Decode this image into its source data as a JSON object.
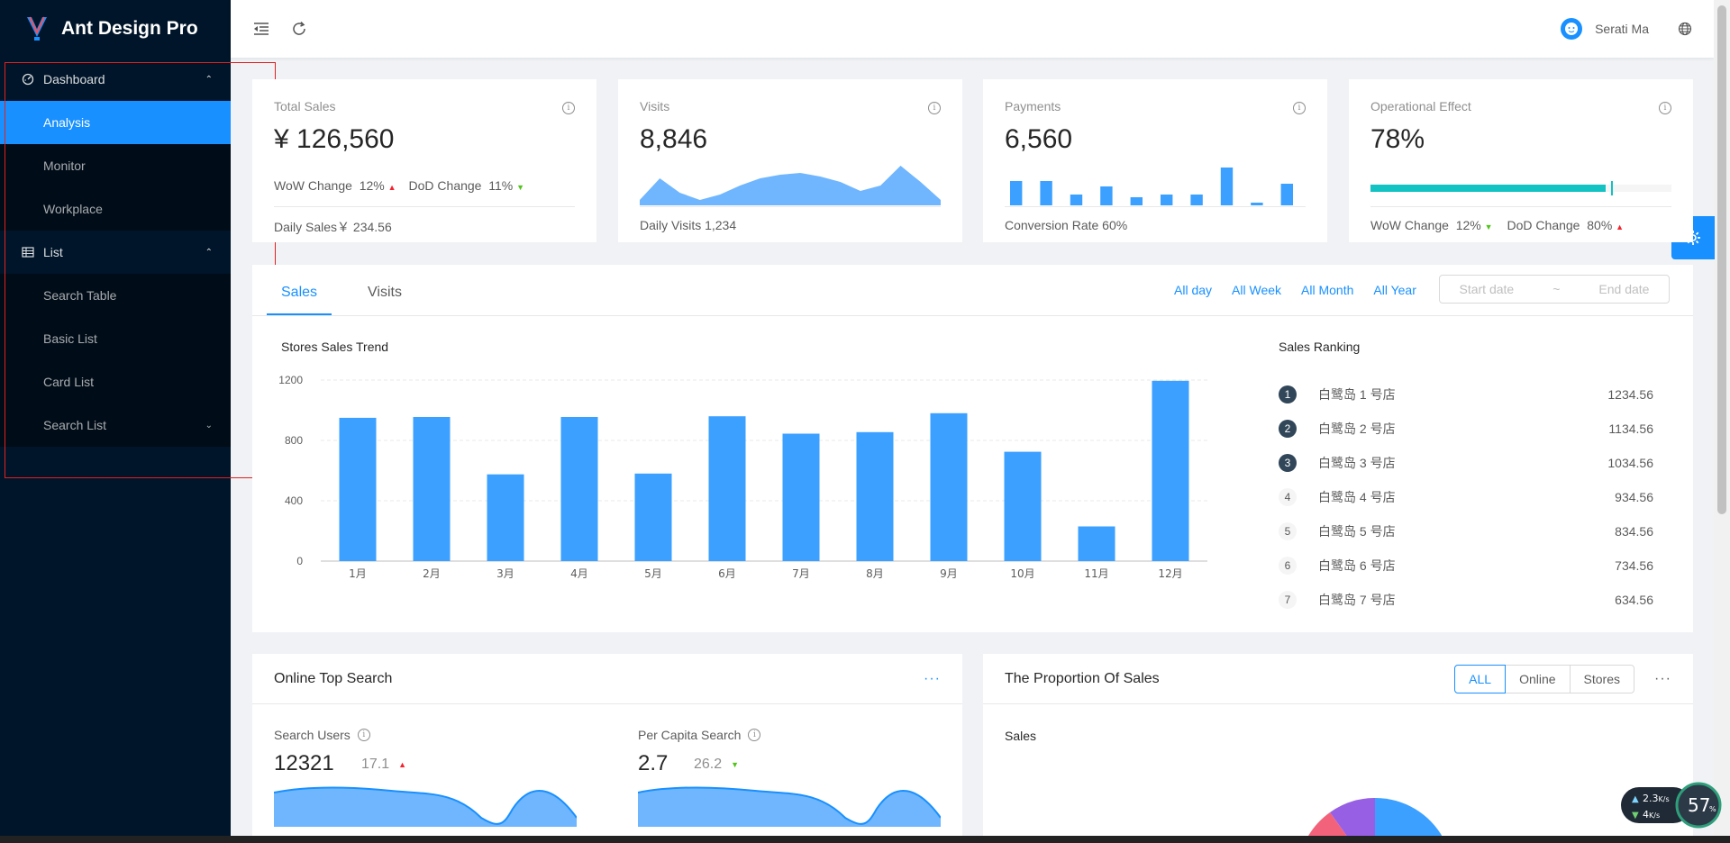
{
  "app": {
    "title": "Ant Design Pro"
  },
  "sidebar": {
    "groups": [
      {
        "label": "Dashboard",
        "icon": "dashboard-icon",
        "items": [
          {
            "label": "Analysis",
            "active": true
          },
          {
            "label": "Monitor"
          },
          {
            "label": "Workplace"
          }
        ]
      },
      {
        "label": "List",
        "icon": "table-icon",
        "items": [
          {
            "label": "Search Table"
          },
          {
            "label": "Basic List"
          },
          {
            "label": "Card List"
          },
          {
            "label": "Search List"
          }
        ]
      }
    ]
  },
  "header": {
    "user": "Serati Ma"
  },
  "stats": {
    "total_sales": {
      "title": "Total Sales",
      "value": "¥ 126,560",
      "wow_label": "WoW Change",
      "wow": "12%",
      "dod_label": "DoD Change",
      "dod": "11%",
      "footer": "Daily Sales￥ 234.56"
    },
    "visits": {
      "title": "Visits",
      "value": "8,846",
      "footer": "Daily Visits 1,234"
    },
    "payments": {
      "title": "Payments",
      "value": "6,560",
      "footer": "Conversion Rate 60%"
    },
    "operational": {
      "title": "Operational Effect",
      "value": "78%",
      "progress": 78,
      "wow_label": "WoW Change",
      "wow": "12%",
      "dod_label": "DoD Change",
      "dod": "80%"
    }
  },
  "sales_panel": {
    "tabs": [
      "Sales",
      "Visits"
    ],
    "ranges": [
      "All day",
      "All Week",
      "All Month",
      "All Year"
    ],
    "start_placeholder": "Start date",
    "range_sep": "~",
    "end_placeholder": "End date",
    "chart_title": "Stores Sales Trend",
    "ranking_title": "Sales Ranking",
    "ranking": [
      {
        "rank": "1",
        "name": "白鹭岛 1 号店",
        "value": "1234.56"
      },
      {
        "rank": "2",
        "name": "白鹭岛 2 号店",
        "value": "1134.56"
      },
      {
        "rank": "3",
        "name": "白鹭岛 3 号店",
        "value": "1034.56"
      },
      {
        "rank": "4",
        "name": "白鹭岛 4 号店",
        "value": "934.56"
      },
      {
        "rank": "5",
        "name": "白鹭岛 5 号店",
        "value": "834.56"
      },
      {
        "rank": "6",
        "name": "白鹭岛 6 号店",
        "value": "734.56"
      },
      {
        "rank": "7",
        "name": "白鹭岛 7 号店",
        "value": "634.56"
      }
    ]
  },
  "chart_data": {
    "type": "bar",
    "title": "Stores Sales Trend",
    "categories": [
      "1月",
      "2月",
      "3月",
      "4月",
      "5月",
      "6月",
      "7月",
      "8月",
      "9月",
      "10月",
      "11月",
      "12月"
    ],
    "values": [
      950,
      955,
      575,
      955,
      580,
      960,
      845,
      855,
      980,
      725,
      230,
      1195
    ],
    "yticks": [
      0,
      400,
      800,
      1200
    ],
    "ylim": [
      0,
      1200
    ],
    "color": "#3ba0ff"
  },
  "visits_area": [
    6,
    30,
    14,
    6,
    12,
    22,
    30,
    34,
    36,
    32,
    26,
    16,
    22,
    44,
    26,
    6
  ],
  "payments_bars": [
    9,
    9,
    4,
    7,
    3,
    4,
    4,
    14,
    1,
    8
  ],
  "top_search": {
    "title": "Online Top Search",
    "users_label": "Search Users",
    "users": "12321",
    "users_change": "17.1",
    "per_capita_label": "Per Capita Search",
    "per_capita": "2.7",
    "per_capita_change": "26.2"
  },
  "proportion": {
    "title": "The Proportion Of Sales",
    "options": [
      "ALL",
      "Online",
      "Stores"
    ],
    "selected": "ALL",
    "label": "Sales"
  },
  "net_speed": {
    "up": "2.3",
    "down": "4",
    "unit": "K/s",
    "cpu": "57"
  },
  "colors": {
    "primary": "#1890ff",
    "sider": "#001529",
    "progress": "#13c2c2"
  }
}
